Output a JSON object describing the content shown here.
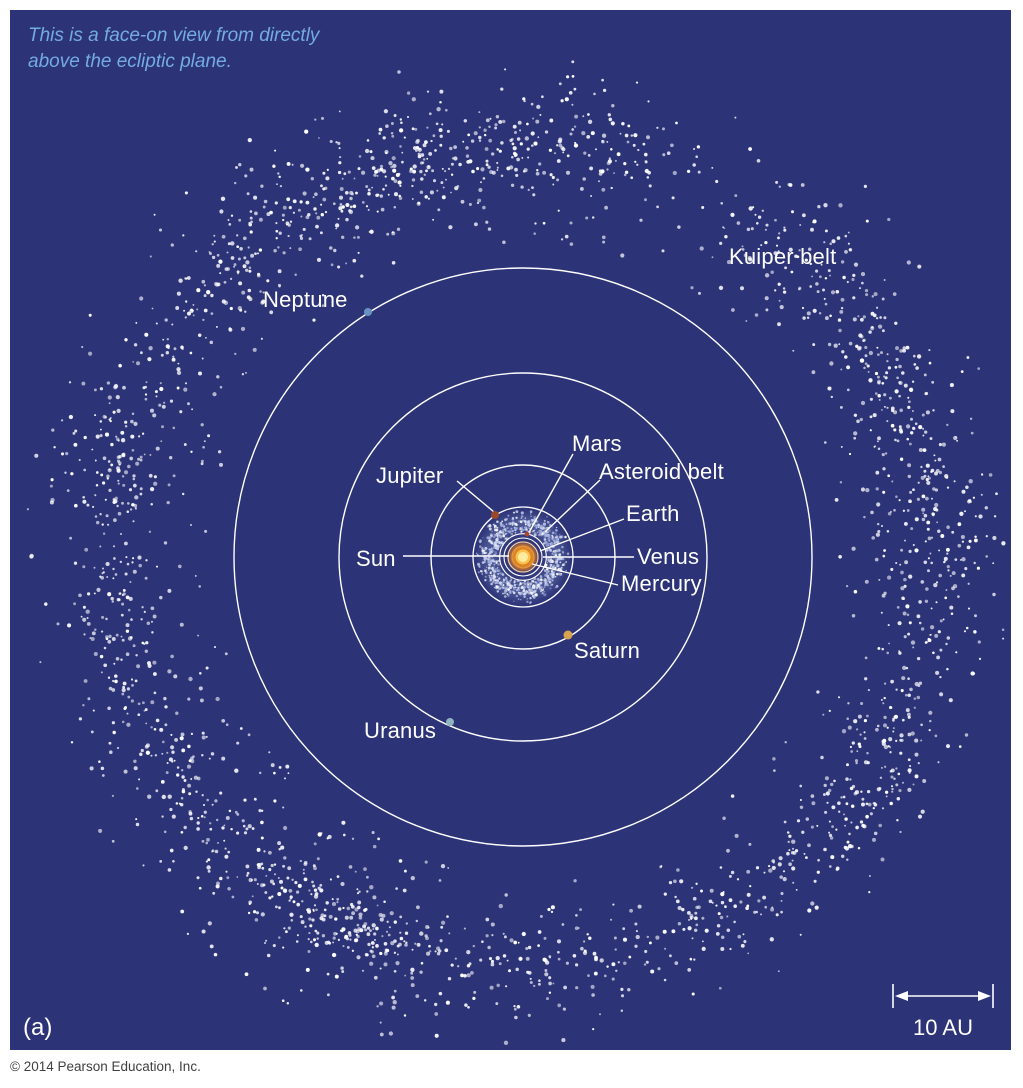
{
  "caption": {
    "line1": "This is a face-on view from directly",
    "line2": "above the ecliptic plane."
  },
  "labels": {
    "kuiper_belt": "Kuiper belt",
    "neptune": "Neptune",
    "uranus": "Uranus",
    "saturn": "Saturn",
    "jupiter": "Jupiter",
    "mars": "Mars",
    "asteroid_belt": "Asteroid belt",
    "earth": "Earth",
    "venus": "Venus",
    "mercury": "Mercury",
    "sun": "Sun"
  },
  "scale_bar": {
    "label": "10 AU"
  },
  "panel_letter": "(a)",
  "footer": {
    "copyright": "© 2014 Pearson Education, Inc."
  },
  "colors": {
    "background": "#2c3377",
    "caption_text": "#74abe2",
    "label_text": "#ffffff",
    "orbit_line": "#ffffff",
    "kuiper_dot": "#ffffff",
    "asteroid_haze": "#97a7da",
    "sun_core": "#ffeb9e",
    "sun_disc": "#f7c24e",
    "sun_rim": "#e0811f",
    "jupiter_dot": "#9a492b",
    "saturn_dot": "#d6a351",
    "uranus_dot": "#8fb3bf",
    "neptune_dot": "#6a92c0",
    "mars_dot": "#b2442a"
  },
  "diagram": {
    "type": "orbital-map",
    "view": "face-on from above the ecliptic plane",
    "center_object": "Sun",
    "orbits_shown": [
      "Mercury",
      "Venus",
      "Earth",
      "Mars",
      "Jupiter",
      "Saturn",
      "Uranus",
      "Neptune"
    ],
    "belts_shown": [
      "Asteroid belt",
      "Kuiper belt"
    ],
    "scale_bar_length": "10 AU"
  }
}
